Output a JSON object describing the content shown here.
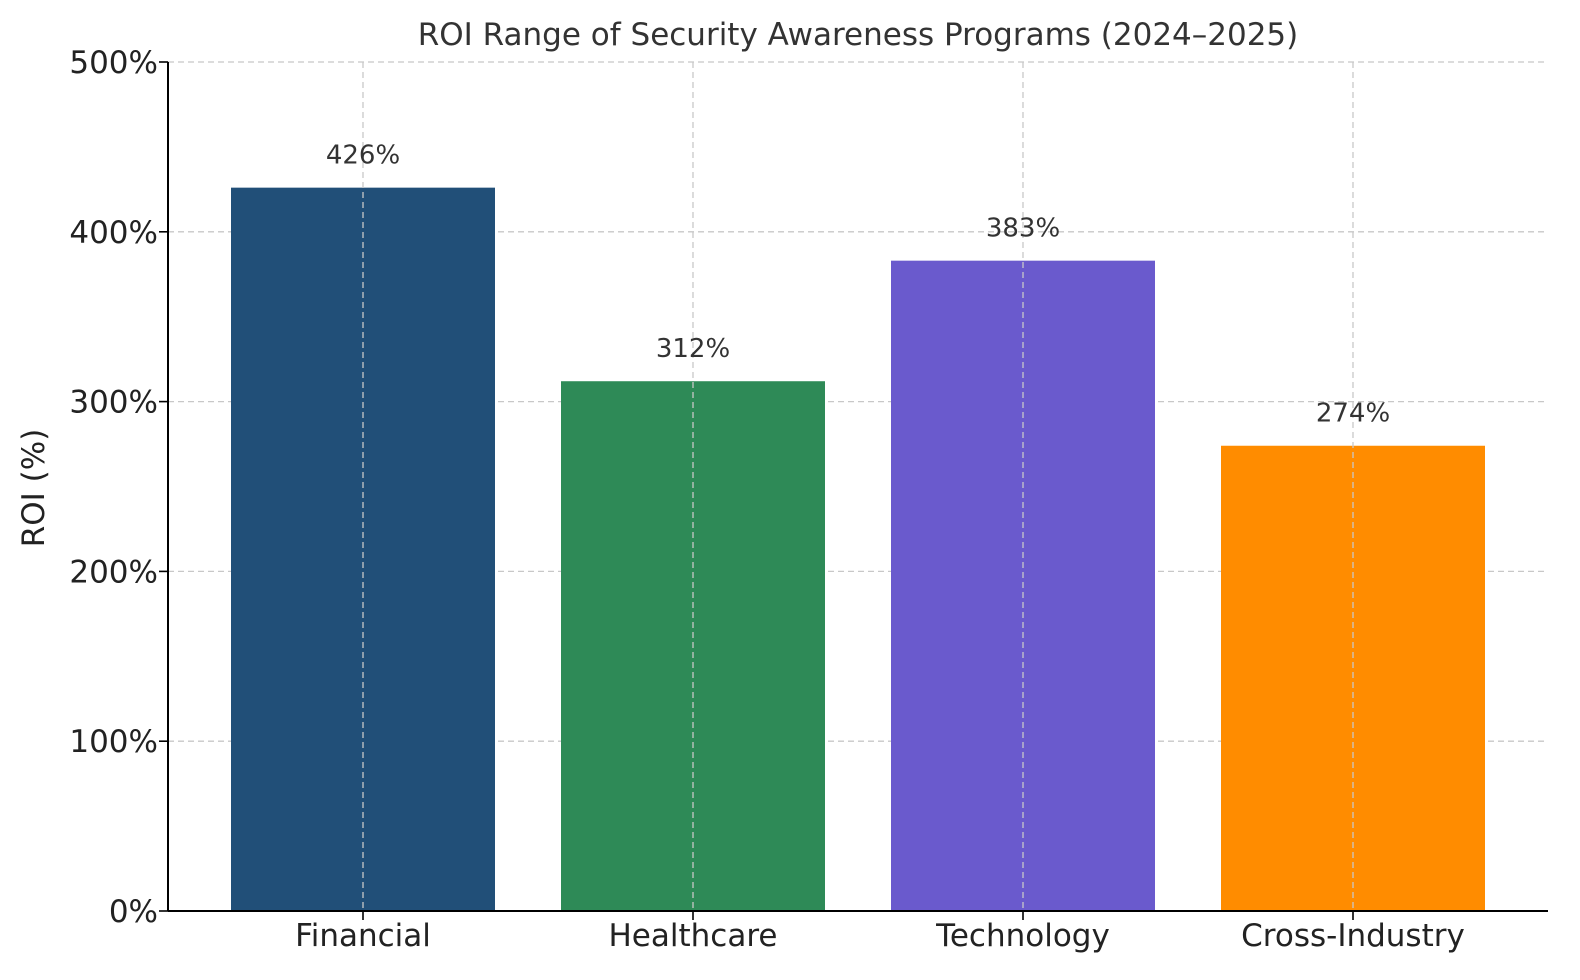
{
  "chart_data": {
    "type": "bar",
    "title": "ROI Range of Security Awareness Programs (2024–2025)",
    "xlabel": "",
    "ylabel": "ROI (%)",
    "categories": [
      "Financial",
      "Healthcare",
      "Technology",
      "Cross-Industry"
    ],
    "values": [
      426,
      312,
      383,
      274
    ],
    "value_labels": [
      "426%",
      "312%",
      "383%",
      "274%"
    ],
    "colors": [
      "#214f78",
      "#2e8a57",
      "#6a5acd",
      "#ff8c00"
    ],
    "ylim": [
      0,
      500
    ],
    "yticks": [
      0,
      100,
      200,
      300,
      400,
      500
    ],
    "ytick_labels": [
      "0%",
      "100%",
      "200%",
      "300%",
      "400%",
      "500%"
    ],
    "grid": true,
    "legend": false
  }
}
